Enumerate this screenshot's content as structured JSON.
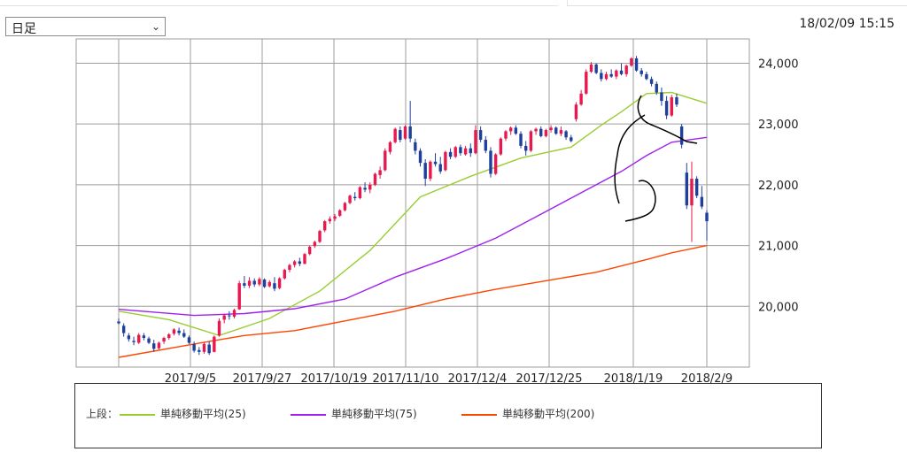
{
  "header": {
    "period_select_value": "日足",
    "datetime": "18/02/09 15:15"
  },
  "legend": {
    "label": "上段：",
    "items": [
      {
        "label": "単純移動平均(25)",
        "color": "#9acd32"
      },
      {
        "label": "単純移動平均(75)",
        "color": "#a020f0"
      },
      {
        "label": "単純移動平均(200)",
        "color": "#ff4500"
      }
    ]
  },
  "colors": {
    "up": "#e8194f",
    "down": "#1f3f9c",
    "grid": "#9e9e9e"
  },
  "chart_data": {
    "type": "candlestick",
    "ylim": [
      19000,
      24400
    ],
    "y_ticks": [
      20000,
      21000,
      22000,
      23000,
      24000
    ],
    "y_tick_labels": [
      "20,000",
      "21,000",
      "22,000",
      "23,000",
      "24,000"
    ],
    "x_tick_labels": [
      "2017/9/5",
      "2017/9/27",
      "2017/10/19",
      "2017/11/10",
      "2017/12/4",
      "2017/12/25",
      "2018/1/19",
      "2018/2/9"
    ],
    "candles": [
      [
        19750,
        19800,
        19700,
        19720
      ],
      [
        19680,
        19720,
        19500,
        19560
      ],
      [
        19520,
        19560,
        19420,
        19460
      ],
      [
        19430,
        19500,
        19360,
        19410
      ],
      [
        19400,
        19560,
        19380,
        19530
      ],
      [
        19520,
        19560,
        19440,
        19480
      ],
      [
        19470,
        19500,
        19380,
        19400
      ],
      [
        19390,
        19450,
        19250,
        19300
      ],
      [
        19310,
        19420,
        19290,
        19400
      ],
      [
        19420,
        19500,
        19380,
        19480
      ],
      [
        19480,
        19560,
        19450,
        19540
      ],
      [
        19550,
        19640,
        19520,
        19620
      ],
      [
        19600,
        19650,
        19520,
        19560
      ],
      [
        19560,
        19620,
        19480,
        19500
      ],
      [
        19490,
        19520,
        19380,
        19400
      ],
      [
        19380,
        19420,
        19240,
        19270
      ],
      [
        19280,
        19330,
        19200,
        19250
      ],
      [
        19250,
        19400,
        19220,
        19380
      ],
      [
        19370,
        19420,
        19200,
        19230
      ],
      [
        19250,
        19520,
        19240,
        19500
      ],
      [
        19520,
        19800,
        19500,
        19760
      ],
      [
        19780,
        19880,
        19720,
        19850
      ],
      [
        19850,
        19920,
        19780,
        19840
      ],
      [
        19830,
        19960,
        19800,
        19940
      ],
      [
        19950,
        20420,
        19940,
        20380
      ],
      [
        20380,
        20500,
        20300,
        20340
      ],
      [
        20340,
        20480,
        20300,
        20420
      ],
      [
        20420,
        20460,
        20320,
        20360
      ],
      [
        20360,
        20480,
        20330,
        20450
      ],
      [
        20440,
        20460,
        20300,
        20320
      ],
      [
        20330,
        20430,
        20310,
        20400
      ],
      [
        20380,
        20480,
        20250,
        20290
      ],
      [
        20300,
        20480,
        20280,
        20460
      ],
      [
        20460,
        20620,
        20440,
        20600
      ],
      [
        20600,
        20700,
        20560,
        20680
      ],
      [
        20680,
        20760,
        20640,
        20740
      ],
      [
        20740,
        20800,
        20660,
        20700
      ],
      [
        20700,
        20880,
        20690,
        20860
      ],
      [
        20860,
        21000,
        20840,
        20980
      ],
      [
        20990,
        21080,
        20960,
        21060
      ],
      [
        21060,
        21260,
        21040,
        21240
      ],
      [
        21250,
        21420,
        21220,
        21400
      ],
      [
        21400,
        21480,
        21360,
        21440
      ],
      [
        21440,
        21520,
        21400,
        21480
      ],
      [
        21490,
        21600,
        21470,
        21580
      ],
      [
        21580,
        21720,
        21560,
        21700
      ],
      [
        21700,
        21840,
        21680,
        21820
      ],
      [
        21800,
        21880,
        21740,
        21780
      ],
      [
        21780,
        21980,
        21760,
        21960
      ],
      [
        21950,
        22040,
        21880,
        21920
      ],
      [
        21920,
        22040,
        21860,
        22000
      ],
      [
        22000,
        22200,
        21980,
        22180
      ],
      [
        22160,
        22300,
        22100,
        22240
      ],
      [
        22240,
        22600,
        22220,
        22560
      ],
      [
        22540,
        22720,
        22500,
        22700
      ],
      [
        22700,
        22940,
        22680,
        22920
      ],
      [
        22900,
        22960,
        22700,
        22740
      ],
      [
        22760,
        22980,
        22740,
        22960
      ],
      [
        22960,
        23380,
        22700,
        22760
      ],
      [
        22700,
        22760,
        22500,
        22560
      ],
      [
        22560,
        22600,
        22300,
        22360
      ],
      [
        22360,
        22420,
        21980,
        22100
      ],
      [
        22100,
        22400,
        22060,
        22380
      ],
      [
        22380,
        22520,
        22300,
        22340
      ],
      [
        22340,
        22460,
        22180,
        22220
      ],
      [
        22240,
        22560,
        22220,
        22540
      ],
      [
        22540,
        22600,
        22420,
        22460
      ],
      [
        22460,
        22640,
        22440,
        22620
      ],
      [
        22620,
        22660,
        22480,
        22520
      ],
      [
        22500,
        22640,
        22480,
        22600
      ],
      [
        22600,
        22680,
        22460,
        22520
      ],
      [
        22520,
        22980,
        22500,
        22900
      ],
      [
        22900,
        22960,
        22700,
        22740
      ],
      [
        22740,
        22800,
        22520,
        22560
      ],
      [
        22560,
        22620,
        22120,
        22180
      ],
      [
        22180,
        22520,
        22160,
        22500
      ],
      [
        22500,
        22780,
        22480,
        22760
      ],
      [
        22760,
        22900,
        22720,
        22880
      ],
      [
        22880,
        22960,
        22820,
        22940
      ],
      [
        22940,
        22980,
        22820,
        22840
      ],
      [
        22840,
        22880,
        22600,
        22640
      ],
      [
        22640,
        22720,
        22480,
        22560
      ],
      [
        22560,
        22900,
        22540,
        22880
      ],
      [
        22880,
        22940,
        22820,
        22920
      ],
      [
        22920,
        22960,
        22780,
        22800
      ],
      [
        22800,
        22920,
        22780,
        22900
      ],
      [
        22900,
        22980,
        22860,
        22940
      ],
      [
        22940,
        22960,
        22820,
        22840
      ],
      [
        22840,
        22960,
        22800,
        22900
      ],
      [
        22880,
        22900,
        22740,
        22780
      ],
      [
        22780,
        22820,
        22700,
        22720
      ],
      [
        23080,
        23360,
        23040,
        23320
      ],
      [
        23320,
        23560,
        23300,
        23500
      ],
      [
        23500,
        23900,
        23480,
        23860
      ],
      [
        23860,
        24020,
        23840,
        23980
      ],
      [
        23980,
        24000,
        23820,
        23840
      ],
      [
        23840,
        23900,
        23700,
        23740
      ],
      [
        23740,
        23860,
        23720,
        23820
      ],
      [
        23820,
        23900,
        23760,
        23780
      ],
      [
        23780,
        23900,
        23740,
        23880
      ],
      [
        23880,
        24000,
        23800,
        23820
      ],
      [
        23820,
        23980,
        23780,
        23960
      ],
      [
        23960,
        24100,
        23940,
        24080
      ],
      [
        24080,
        24120,
        23860,
        23880
      ],
      [
        23880,
        23920,
        23780,
        23820
      ],
      [
        23820,
        23860,
        23720,
        23740
      ],
      [
        23740,
        23780,
        23620,
        23660
      ],
      [
        23660,
        23700,
        23480,
        23520
      ],
      [
        23520,
        23600,
        23300,
        23380
      ],
      [
        23380,
        23460,
        23080,
        23140
      ],
      [
        23140,
        23480,
        23120,
        23440
      ],
      [
        23440,
        23500,
        23280,
        23320
      ],
      [
        22960,
        23000,
        22600,
        22660
      ],
      [
        22200,
        22360,
        21600,
        21660
      ],
      [
        21660,
        22380,
        21060,
        22100
      ],
      [
        22100,
        22140,
        21780,
        21820
      ],
      [
        21800,
        21980,
        21600,
        21640
      ],
      [
        21540,
        21580,
        21080,
        21400
      ]
    ],
    "series": [
      {
        "name": "単純移動平均(25)",
        "color": "#9acd32",
        "x": [
          0,
          10,
          20,
          30,
          40,
          50,
          60,
          70,
          80,
          90,
          96,
          100,
          105,
          110,
          117
        ],
        "values": [
          19920,
          19780,
          19520,
          19800,
          20250,
          20920,
          21800,
          22140,
          22440,
          22620,
          22980,
          23200,
          23500,
          23520,
          23340
        ]
      },
      {
        "name": "単純移動平均(75)",
        "color": "#a020f0",
        "x": [
          0,
          15,
          25,
          35,
          45,
          55,
          65,
          75,
          85,
          95,
          100,
          105,
          110,
          117
        ],
        "values": [
          19950,
          19850,
          19880,
          19960,
          20120,
          20480,
          20780,
          21120,
          21560,
          22000,
          22220,
          22480,
          22700,
          22780
        ]
      },
      {
        "name": "単純移動平均(200)",
        "color": "#ff4500",
        "x": [
          0,
          15,
          25,
          35,
          45,
          55,
          65,
          75,
          85,
          95,
          105,
          110,
          117
        ],
        "values": [
          19160,
          19380,
          19520,
          19600,
          19760,
          19920,
          20120,
          20280,
          20420,
          20560,
          20770,
          20880,
          21000
        ]
      }
    ]
  }
}
